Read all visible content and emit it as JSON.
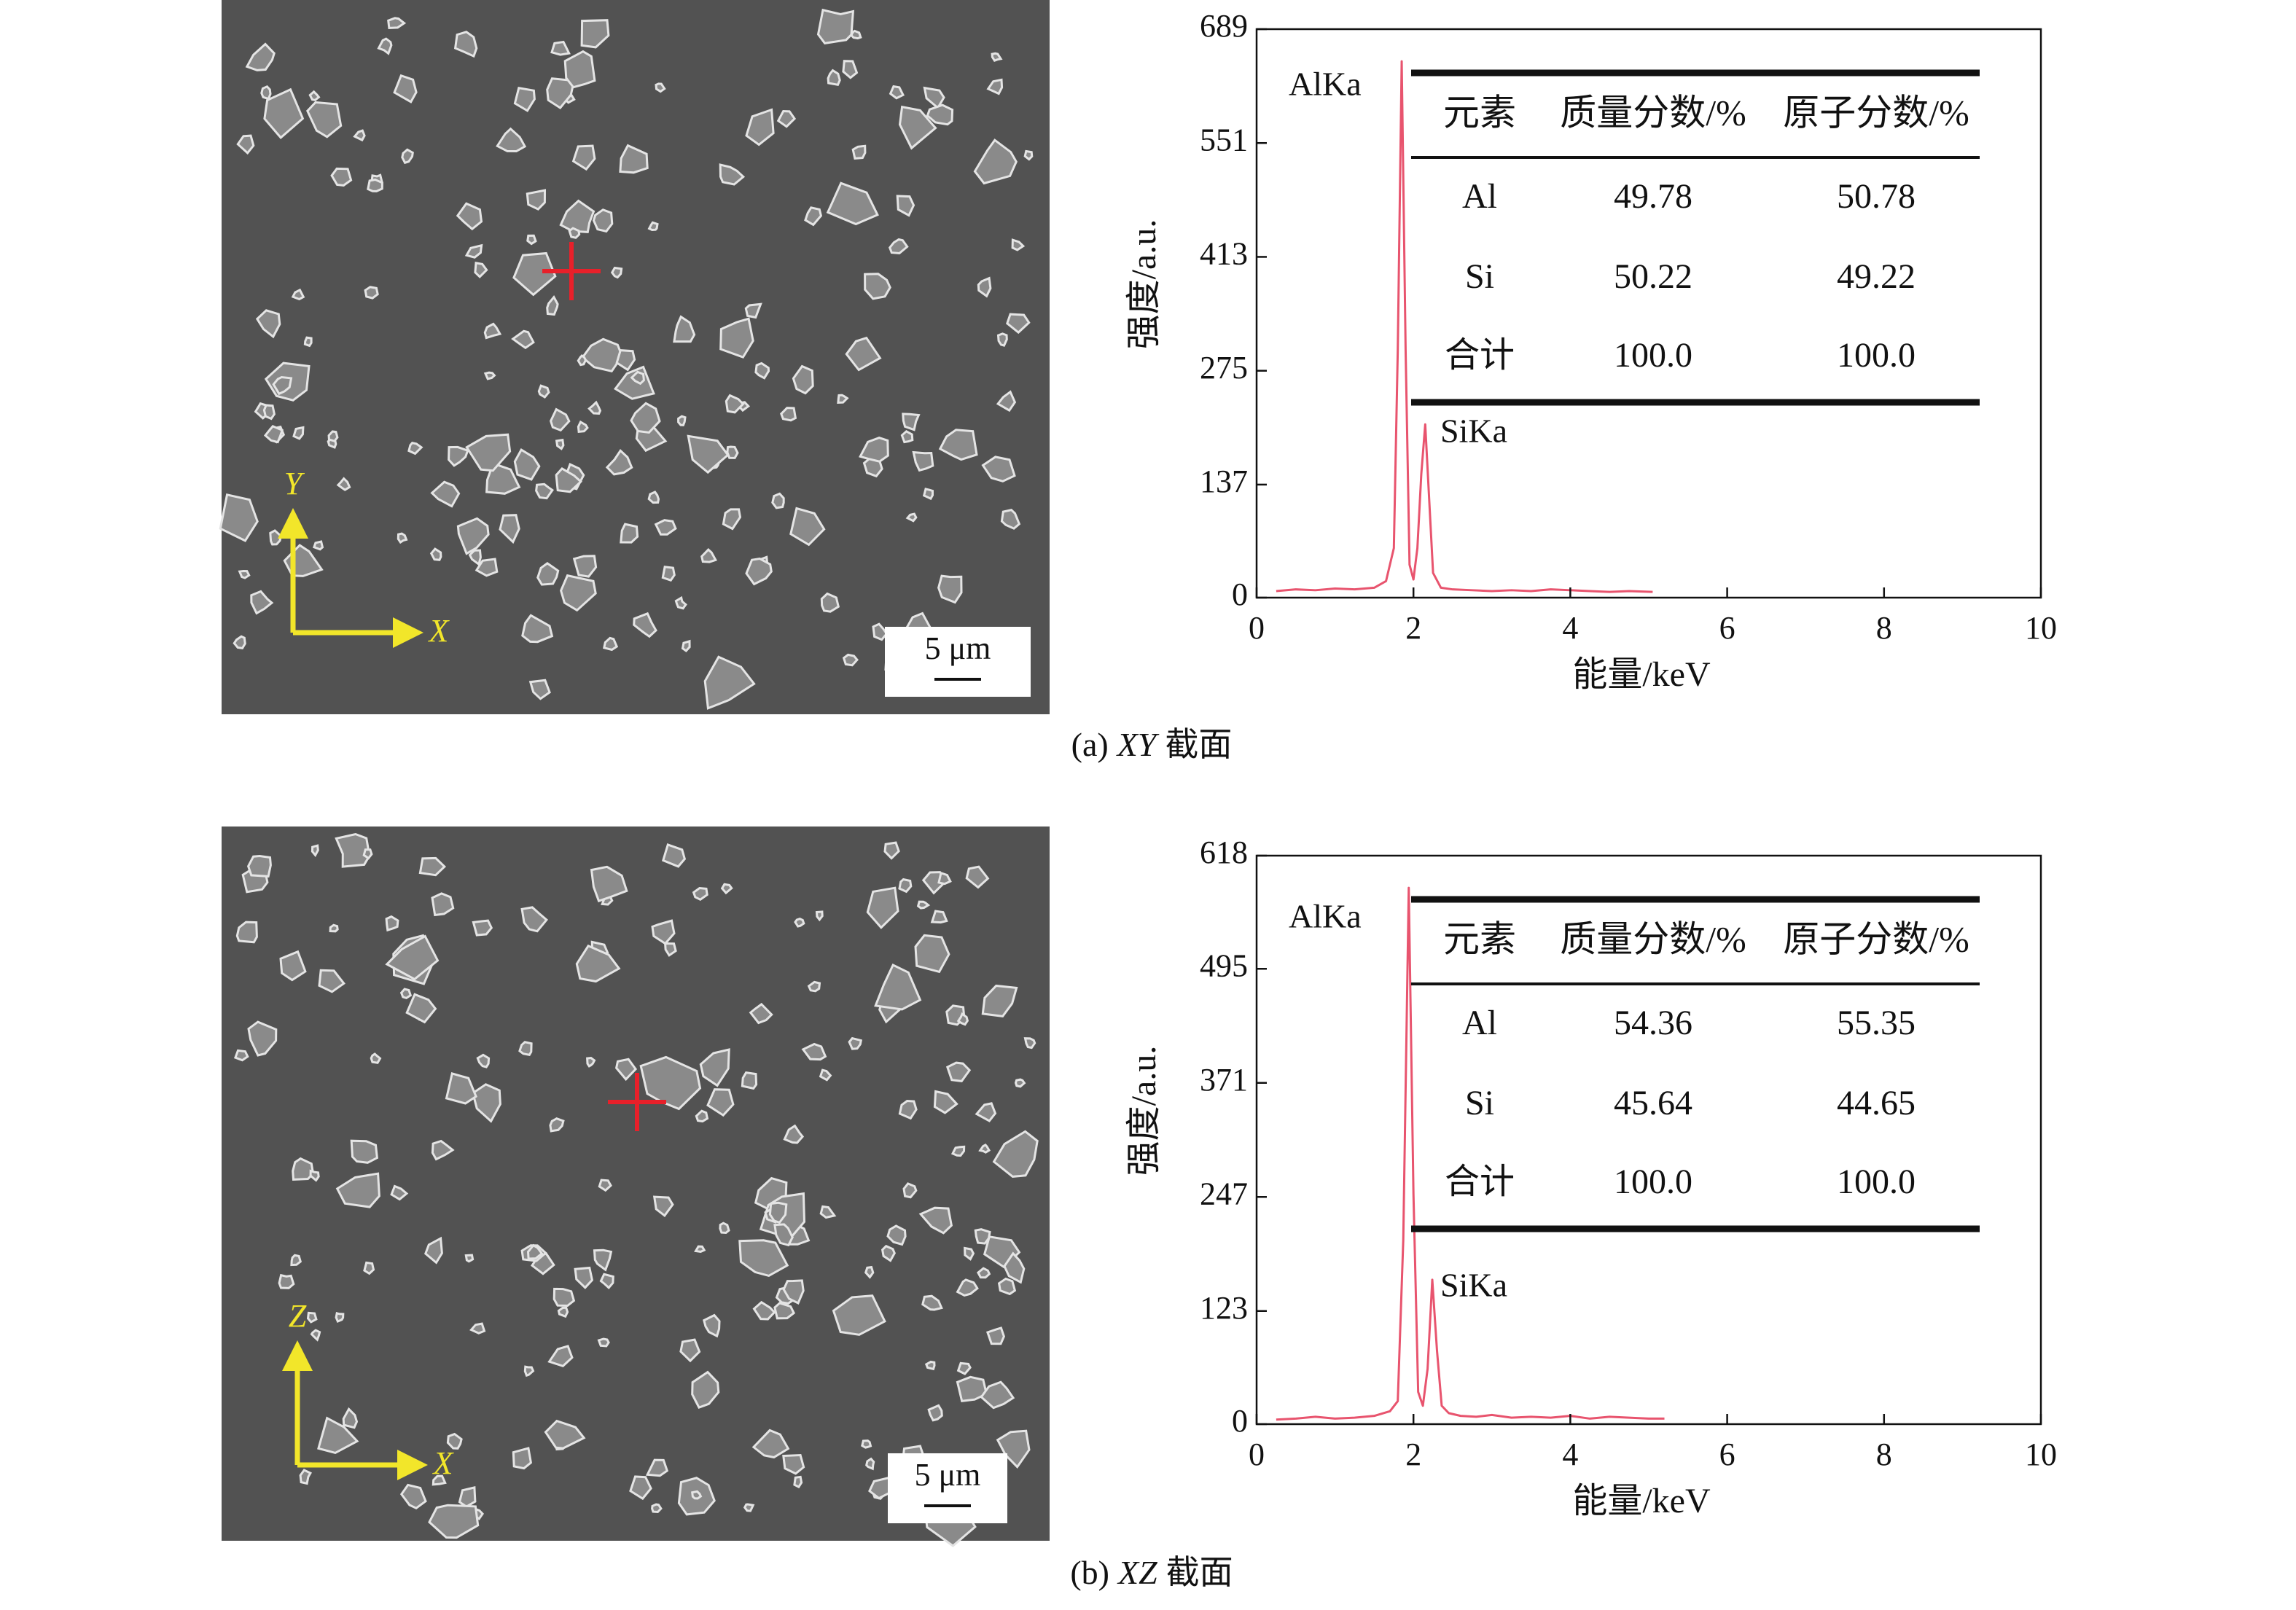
{
  "chart_data": [
    {
      "type": "line",
      "caption": {
        "label": "(a)",
        "plane": "XY",
        "suffix": "截面"
      },
      "xlabel": "能量/keV",
      "ylabel": "强度/a.u.",
      "xlim": [
        0,
        10
      ],
      "xticks": [
        0,
        2,
        4,
        6,
        8,
        10
      ],
      "ylim": [
        0,
        689
      ],
      "yticks": [
        0,
        137,
        275,
        413,
        551,
        689
      ],
      "x": [
        0.25,
        0.5,
        0.75,
        1.0,
        1.25,
        1.5,
        1.65,
        1.75,
        1.8,
        1.85,
        1.9,
        1.95,
        2.0,
        2.05,
        2.1,
        2.15,
        2.2,
        2.25,
        2.35,
        2.5,
        2.75,
        3.0,
        3.25,
        3.5,
        3.75,
        4.0,
        4.25,
        4.5,
        4.75,
        5.05
      ],
      "series": [
        {
          "color": "#e8546e",
          "values": [
            8,
            10,
            9,
            11,
            10,
            12,
            20,
            60,
            300,
            650,
            300,
            40,
            22,
            60,
            150,
            210,
            120,
            30,
            12,
            10,
            9,
            8,
            9,
            8,
            10,
            9,
            8,
            7,
            8,
            7
          ]
        }
      ],
      "peak_labels": [
        "AlKa",
        "SiKa"
      ],
      "table": {
        "columns": [
          "元素",
          "质量分数/%",
          "原子分数/%"
        ],
        "rows": [
          [
            "Al",
            "49.78",
            "50.78"
          ],
          [
            "Si",
            "50.22",
            "49.22"
          ],
          [
            "合计",
            "100.0",
            "100.0"
          ]
        ]
      },
      "sem_image": {
        "axis_labels": [
          "Y",
          "X"
        ],
        "scale_bar": "5 μm"
      }
    },
    {
      "type": "line",
      "caption": {
        "label": "(b)",
        "plane": "XZ",
        "suffix": "截面"
      },
      "xlabel": "能量/keV",
      "ylabel": "强度/a.u.",
      "xlim": [
        0,
        10
      ],
      "xticks": [
        0,
        2,
        4,
        6,
        8,
        10
      ],
      "ylim": [
        0,
        618
      ],
      "yticks": [
        0,
        123,
        247,
        371,
        495,
        618
      ],
      "x": [
        0.25,
        0.5,
        0.75,
        1.0,
        1.25,
        1.5,
        1.7,
        1.8,
        1.87,
        1.94,
        2.0,
        2.06,
        2.12,
        2.18,
        2.24,
        2.3,
        2.36,
        2.45,
        2.6,
        2.8,
        3.0,
        3.25,
        3.5,
        3.75,
        4.0,
        4.25,
        4.5,
        4.75,
        5.0,
        5.2
      ],
      "series": [
        {
          "color": "#e8546e",
          "values": [
            5,
            6,
            8,
            6,
            7,
            9,
            14,
            25,
            200,
            583,
            250,
            35,
            20,
            60,
            157,
            80,
            20,
            12,
            9,
            8,
            10,
            7,
            8,
            7,
            9,
            6,
            8,
            7,
            6,
            6
          ]
        }
      ],
      "peak_labels": [
        "AlKa",
        "SiKa"
      ],
      "table": {
        "columns": [
          "元素",
          "质量分数/%",
          "原子分数/%"
        ],
        "rows": [
          [
            "Al",
            "54.36",
            "55.35"
          ],
          [
            "Si",
            "45.64",
            "44.65"
          ],
          [
            "合计",
            "100.0",
            "100.0"
          ]
        ]
      },
      "sem_image": {
        "axis_labels": [
          "Z",
          "X"
        ],
        "scale_bar": "5 μm"
      }
    }
  ]
}
